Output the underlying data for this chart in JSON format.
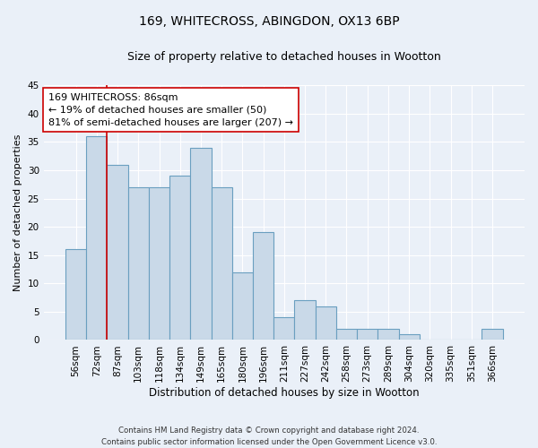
{
  "title1": "169, WHITECROSS, ABINGDON, OX13 6BP",
  "title2": "Size of property relative to detached houses in Wootton",
  "xlabel": "Distribution of detached houses by size in Wootton",
  "ylabel": "Number of detached properties",
  "categories": [
    "56sqm",
    "72sqm",
    "87sqm",
    "103sqm",
    "118sqm",
    "134sqm",
    "149sqm",
    "165sqm",
    "180sqm",
    "196sqm",
    "211sqm",
    "227sqm",
    "242sqm",
    "258sqm",
    "273sqm",
    "289sqm",
    "304sqm",
    "320sqm",
    "335sqm",
    "351sqm",
    "366sqm"
  ],
  "values": [
    16,
    36,
    31,
    27,
    27,
    29,
    34,
    27,
    12,
    19,
    4,
    7,
    6,
    2,
    2,
    2,
    1,
    0,
    0,
    0,
    2
  ],
  "bar_color": "#c9d9e8",
  "bar_edge_color": "#6a9fc0",
  "vline_color": "#cc0000",
  "annotation_line1": "169 WHITECROSS: 86sqm",
  "annotation_line2": "← 19% of detached houses are smaller (50)",
  "annotation_line3": "81% of semi-detached houses are larger (207) →",
  "annotation_box_color": "#ffffff",
  "annotation_box_edge": "#cc0000",
  "ylim": [
    0,
    45
  ],
  "yticks": [
    0,
    5,
    10,
    15,
    20,
    25,
    30,
    35,
    40,
    45
  ],
  "background_color": "#eaf0f8",
  "footer_line1": "Contains HM Land Registry data © Crown copyright and database right 2024.",
  "footer_line2": "Contains public sector information licensed under the Open Government Licence v3.0.",
  "title1_fontsize": 10,
  "title2_fontsize": 9,
  "xlabel_fontsize": 8.5,
  "ylabel_fontsize": 8,
  "tick_fontsize": 7.5,
  "annotation_fontsize": 8
}
